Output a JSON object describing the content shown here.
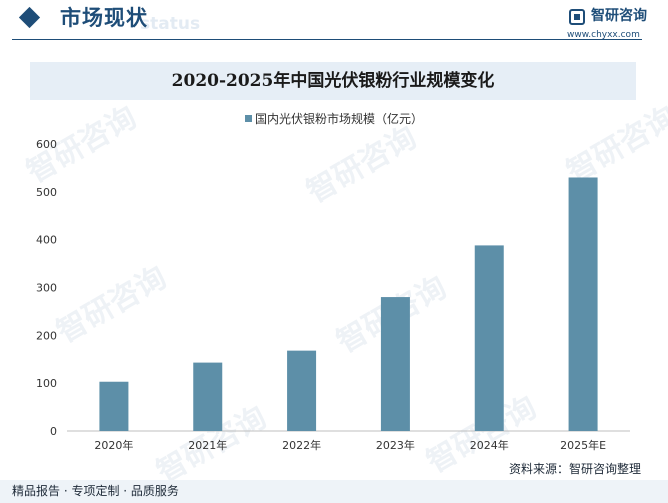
{
  "header": {
    "title": "市场现状",
    "title_ghost": "status",
    "brand_name": "智研咨询",
    "brand_url": "www.chyxx.com"
  },
  "watermark_text": "智研咨询",
  "footer": {
    "tagline": "精品报告 · 专项定制 · 品质服务",
    "source": "资料来源：智研咨询整理"
  },
  "colors": {
    "bar": "#5d8fa8",
    "brand": "#1e4d78",
    "title_band": "#e6eef6"
  },
  "chart_data": {
    "type": "bar",
    "title": "2020-2025年中国光伏银粉行业规模变化",
    "categories": [
      "2020年",
      "2021年",
      "2022年",
      "2023年",
      "2024年",
      "2025年E"
    ],
    "series": [
      {
        "name": "国内光伏银粉市场规模（亿元）",
        "values": [
          103,
          143,
          168,
          280,
          388,
          530
        ]
      }
    ],
    "yticks": [
      0,
      100,
      200,
      300,
      400,
      500,
      600
    ],
    "ylim": [
      0,
      600
    ],
    "grid": false,
    "legend": "top-center"
  }
}
